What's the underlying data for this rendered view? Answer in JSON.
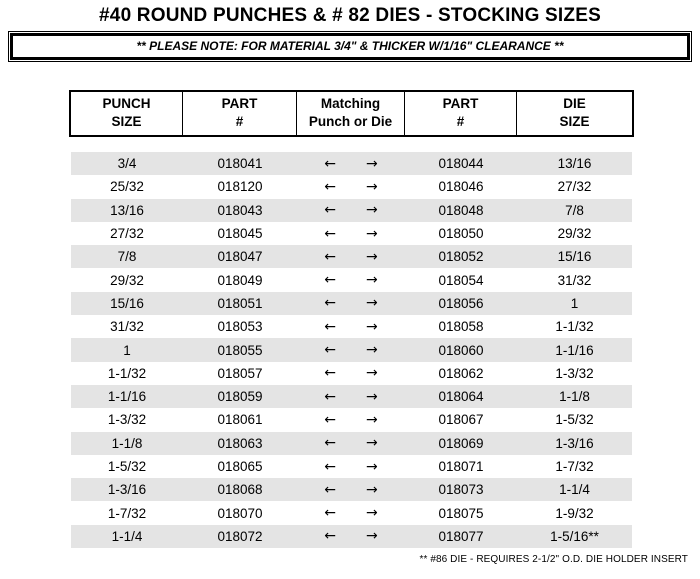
{
  "title": "#40 ROUND PUNCHES & # 82 DIES - STOCKING SIZES",
  "note": "** PLEASE NOTE:  FOR MATERIAL 3/4\" & THICKER W/1/16\" CLEARANCE **",
  "colors": {
    "row_stripe": "#e4e4e4",
    "text": "#000000",
    "background": "#ffffff"
  },
  "table": {
    "columns": [
      {
        "line1": "PUNCH",
        "line2": "SIZE"
      },
      {
        "line1": "PART",
        "line2": "#"
      },
      {
        "line1": "Matching",
        "line2": "Punch or Die"
      },
      {
        "line1": "PART",
        "line2": "#"
      },
      {
        "line1": "DIE",
        "line2": "SIZE"
      }
    ],
    "arrow_left": "←",
    "arrow_right": "→",
    "rows": [
      {
        "punch_size": "3/4",
        "punch_part": "018041",
        "die_part": "018044",
        "die_size": "13/16"
      },
      {
        "punch_size": "25/32",
        "punch_part": "018120",
        "die_part": "018046",
        "die_size": "27/32"
      },
      {
        "punch_size": "13/16",
        "punch_part": "018043",
        "die_part": "018048",
        "die_size": "7/8"
      },
      {
        "punch_size": "27/32",
        "punch_part": "018045",
        "die_part": "018050",
        "die_size": "29/32"
      },
      {
        "punch_size": "7/8",
        "punch_part": "018047",
        "die_part": "018052",
        "die_size": "15/16"
      },
      {
        "punch_size": "29/32",
        "punch_part": "018049",
        "die_part": "018054",
        "die_size": "31/32"
      },
      {
        "punch_size": "15/16",
        "punch_part": "018051",
        "die_part": "018056",
        "die_size": "1"
      },
      {
        "punch_size": "31/32",
        "punch_part": "018053",
        "die_part": "018058",
        "die_size": "1-1/32"
      },
      {
        "punch_size": "1",
        "punch_part": "018055",
        "die_part": "018060",
        "die_size": "1-1/16"
      },
      {
        "punch_size": "1-1/32",
        "punch_part": "018057",
        "die_part": "018062",
        "die_size": "1-3/32"
      },
      {
        "punch_size": "1-1/16",
        "punch_part": "018059",
        "die_part": "018064",
        "die_size": "1-1/8"
      },
      {
        "punch_size": "1-3/32",
        "punch_part": "018061",
        "die_part": "018067",
        "die_size": "1-5/32"
      },
      {
        "punch_size": "1-1/8",
        "punch_part": "018063",
        "die_part": "018069",
        "die_size": "1-3/16"
      },
      {
        "punch_size": "1-5/32",
        "punch_part": "018065",
        "die_part": "018071",
        "die_size": "1-7/32"
      },
      {
        "punch_size": "1-3/16",
        "punch_part": "018068",
        "die_part": "018073",
        "die_size": "1-1/4"
      },
      {
        "punch_size": "1-7/32",
        "punch_part": "018070",
        "die_part": "018075",
        "die_size": "1-9/32"
      },
      {
        "punch_size": "1-1/4",
        "punch_part": "018072",
        "die_part": "018077",
        "die_size": "1-5/16**"
      }
    ]
  },
  "footnote": "** #86 DIE - REQUIRES 2-1/2\" O.D. DIE HOLDER INSERT"
}
